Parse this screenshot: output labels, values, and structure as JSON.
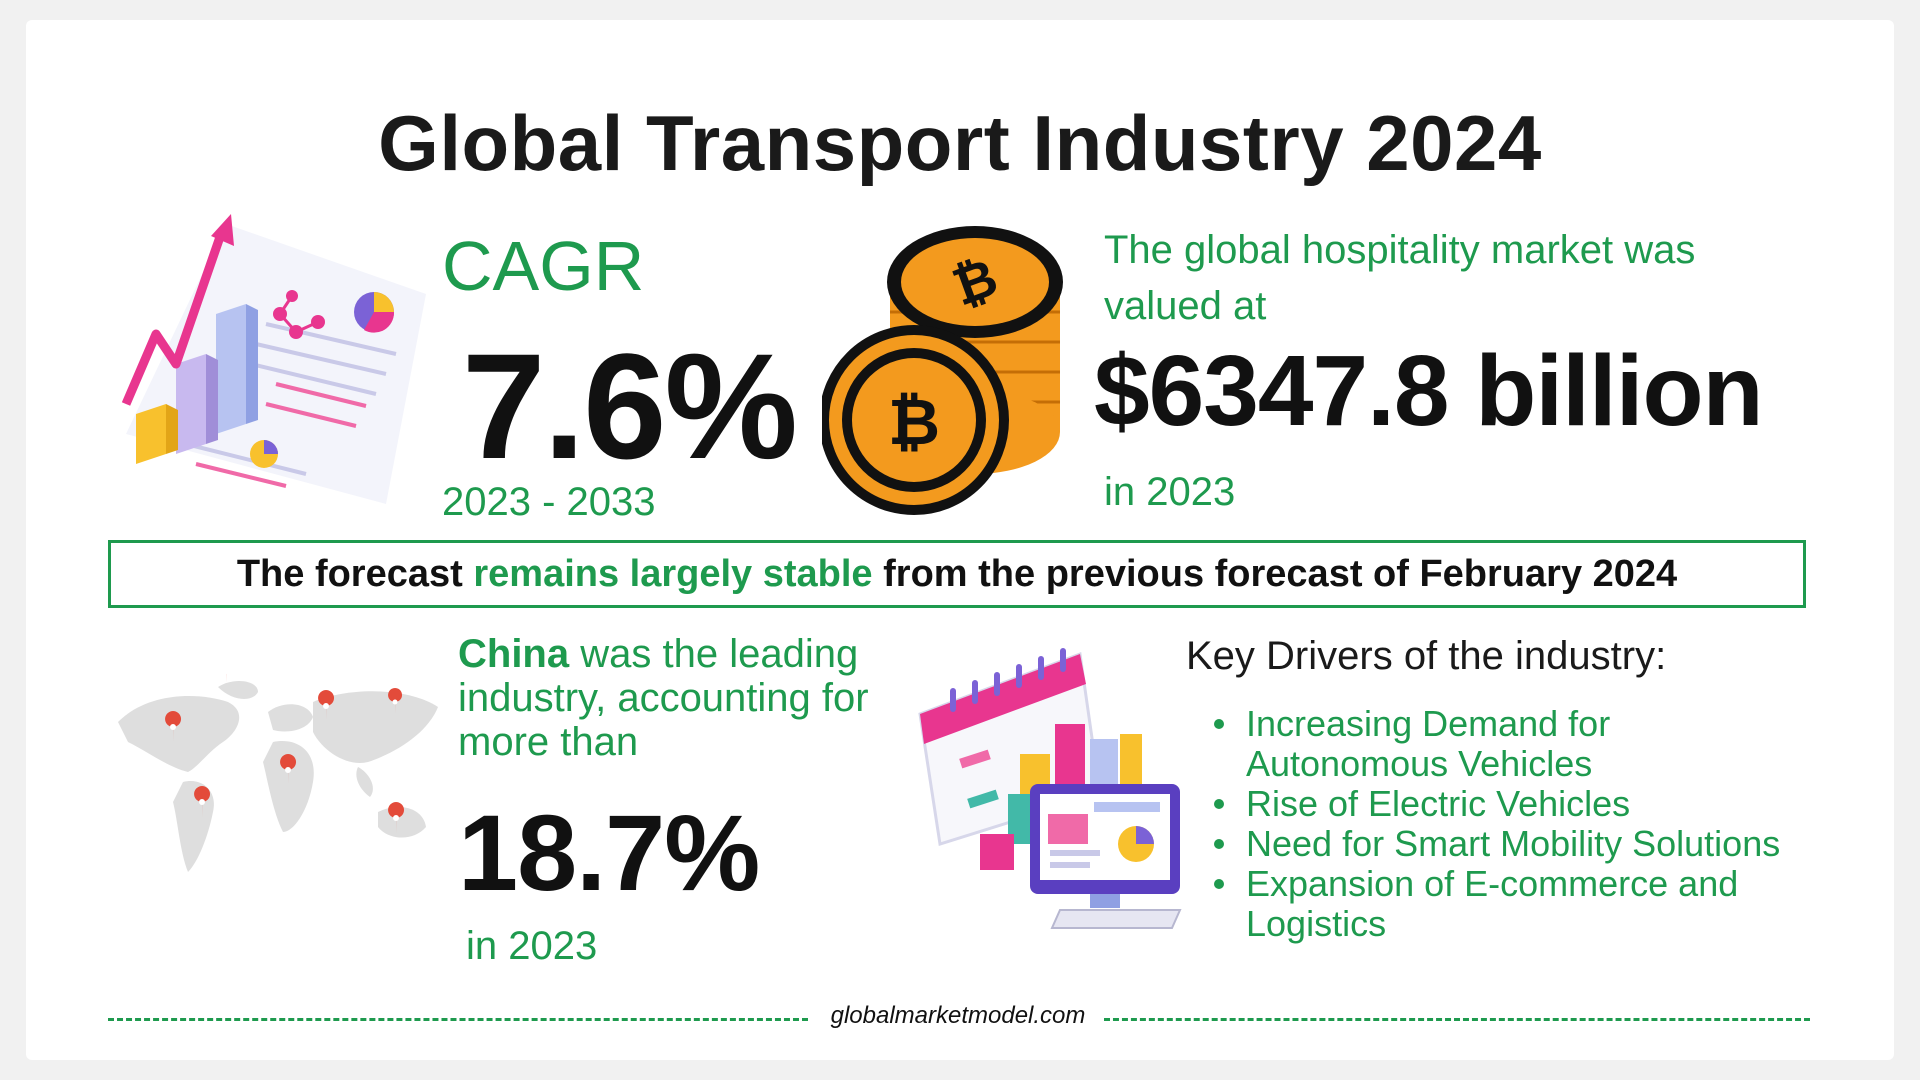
{
  "title": "Global Transport Industry 2024",
  "cagr": {
    "label": "CAGR",
    "value": "7.6%",
    "period": "2023 - 2033"
  },
  "market": {
    "text": "The global hospitality market was valued at",
    "value": "$6347.8 billion",
    "year": "in 2023"
  },
  "banner": {
    "part1": "The forecast ",
    "highlight": "remains largely stable",
    "part2": " from the previous forecast of February 2024"
  },
  "china": {
    "country": "China",
    "text": " was the leading industry, accounting for more than",
    "value": "18.7%",
    "year": "in 2023"
  },
  "drivers": {
    "title": "Key Drivers of the industry:",
    "items": [
      "Increasing Demand for Autonomous Vehicles",
      "Rise of Electric Vehicles",
      "Need for Smart Mobility Solutions",
      "Expansion of E-commerce and Logistics"
    ]
  },
  "footer": {
    "site": "globalmarketmodel.com"
  },
  "colors": {
    "accent": "#1e9a4e",
    "text": "#111111",
    "coin": "#f39a1e",
    "chart_pink": "#e8368f"
  },
  "icons": [
    "chart-report-icon",
    "bitcoin-coins-icon",
    "world-map-icon",
    "calendar-dashboard-icon"
  ]
}
